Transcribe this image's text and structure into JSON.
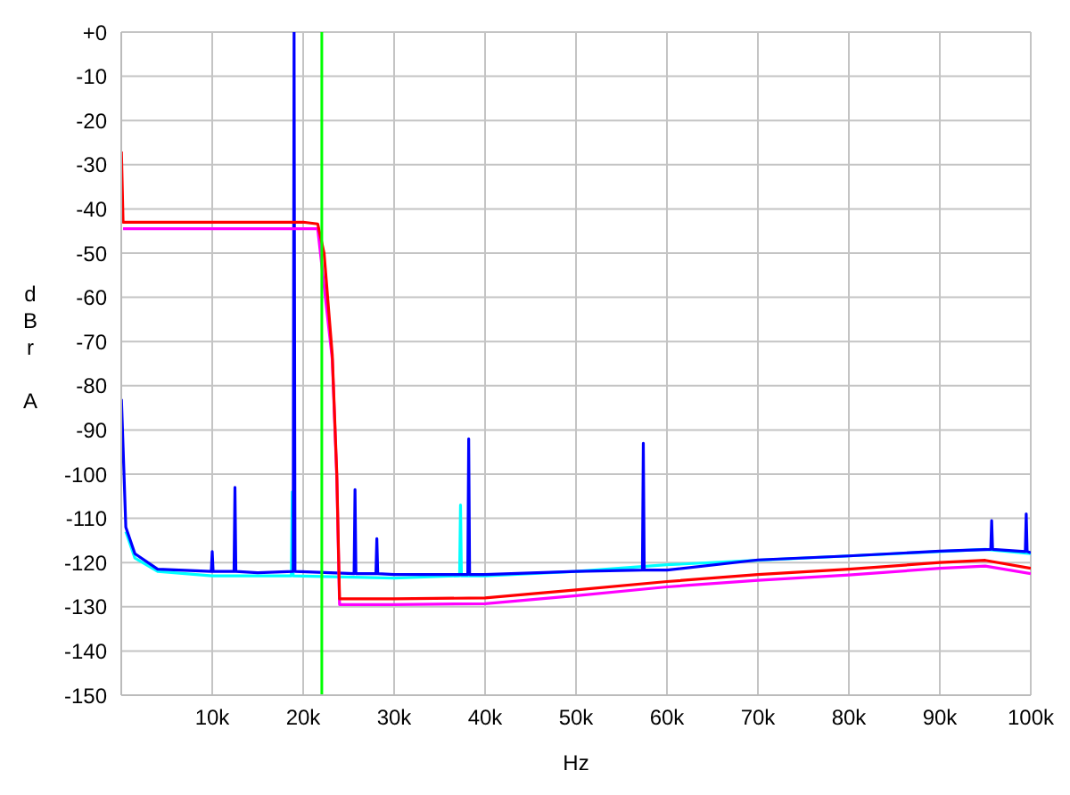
{
  "chart_data": {
    "type": "line",
    "xlabel": "Hz",
    "ylabel": "dBr A",
    "xlim": [
      0,
      100000
    ],
    "xticks": [
      {
        "value": 10000,
        "label": "10k"
      },
      {
        "value": 20000,
        "label": "20k"
      },
      {
        "value": 30000,
        "label": "30k"
      },
      {
        "value": 40000,
        "label": "40k"
      },
      {
        "value": 50000,
        "label": "50k"
      },
      {
        "value": 60000,
        "label": "60k"
      },
      {
        "value": 70000,
        "label": "70k"
      },
      {
        "value": 80000,
        "label": "80k"
      },
      {
        "value": 90000,
        "label": "90k"
      },
      {
        "value": 100000,
        "label": "100k"
      }
    ],
    "ylim": [
      -150,
      0
    ],
    "yticks": [
      {
        "value": 0,
        "label": "+0"
      },
      -10,
      -20,
      -30,
      -40,
      -50,
      -60,
      -70,
      -80,
      -90,
      -100,
      -110,
      -120,
      -130,
      -140,
      -150
    ],
    "grid": true,
    "marker": "none",
    "line_style": "solid",
    "ref_lines": [
      {
        "axis": "x",
        "value": 22050,
        "color": "#00ff00"
      }
    ],
    "series": [
      {
        "color": "#00ffff",
        "x": [
          500,
          1500,
          4000,
          10000,
          18700,
          18800,
          18900,
          30000,
          37200,
          37300,
          37400,
          40000,
          50000,
          60000,
          70000,
          80000,
          90000,
          95000,
          100000
        ],
        "values": [
          -113,
          -119,
          -122,
          -123,
          -123,
          -104,
          -123,
          -123.5,
          -123,
          -107,
          -123,
          -123,
          -122,
          -120.5,
          -119.5,
          -118.5,
          -117.5,
          -117,
          -118
        ]
      },
      {
        "color": "#0000ff",
        "x": [
          20,
          500,
          1500,
          4000,
          9900,
          10000,
          10100,
          12400,
          12500,
          12600,
          15000,
          18900,
          19000,
          19100,
          25600,
          25700,
          25800,
          28000,
          28100,
          28200,
          30000,
          38100,
          38200,
          38300,
          40000,
          50000,
          57300,
          57400,
          57500,
          60000,
          70000,
          80000,
          90000,
          95600,
          95700,
          95800,
          99400,
          99500,
          99600,
          100000
        ],
        "values": [
          -83,
          -112,
          -118,
          -121.5,
          -122,
          -117.5,
          -122,
          -122,
          -103,
          -122,
          -122.3,
          -122,
          0,
          -122,
          -122.5,
          -103.5,
          -122.5,
          -122.5,
          -114.6,
          -122.5,
          -122.7,
          -122.7,
          -92,
          -122.7,
          -122.7,
          -122,
          -121.7,
          -93,
          -121.7,
          -121.7,
          -119.4,
          -118.5,
          -117.4,
          -117,
          -110.5,
          -117,
          -117.5,
          -109,
          -117.5,
          -117.8
        ]
      },
      {
        "color": "#ff00ff",
        "x": [
          200,
          10000,
          20000,
          21600,
          23200,
          23700,
          24000,
          30000,
          40000,
          50000,
          60000,
          70000,
          80000,
          90000,
          95000,
          100000
        ],
        "values": [
          -44.5,
          -44.5,
          -44.5,
          -44.5,
          -74,
          -101,
          -129.5,
          -129.5,
          -129.3,
          -127.5,
          -125.5,
          -124,
          -122.8,
          -121.3,
          -120.8,
          -122.5
        ]
      },
      {
        "color": "#ff0000",
        "x": [
          20,
          200,
          10000,
          20000,
          21600,
          22300,
          23200,
          23700,
          24000,
          30000,
          40000,
          50000,
          60000,
          70000,
          80000,
          90000,
          95000,
          100000
        ],
        "values": [
          -27,
          -43,
          -43,
          -43,
          -43.4,
          -50,
          -73,
          -100,
          -128.2,
          -128.2,
          -128,
          -126.2,
          -124.3,
          -122.7,
          -121.5,
          -120,
          -119.5,
          -121.3
        ]
      }
    ]
  }
}
